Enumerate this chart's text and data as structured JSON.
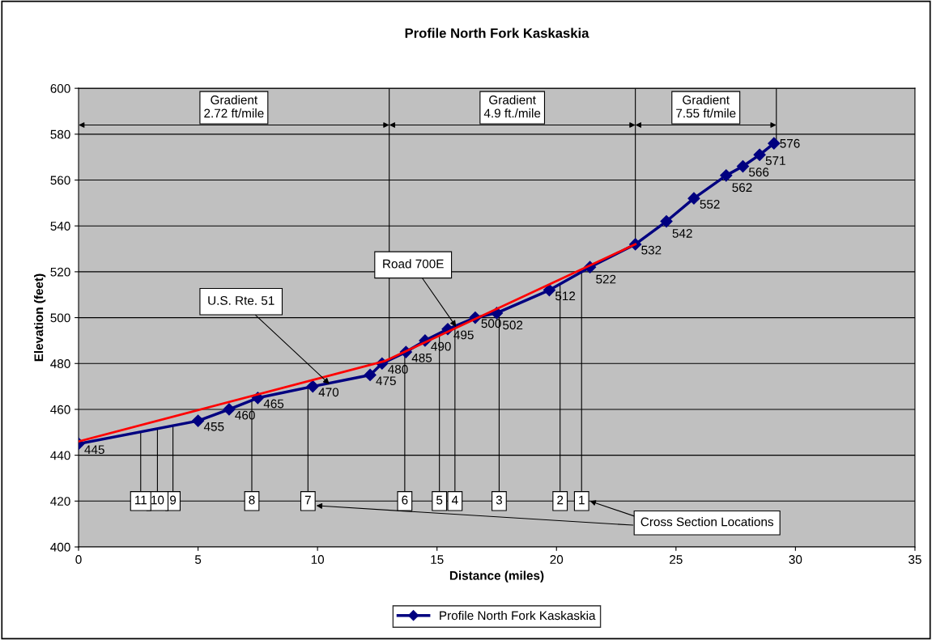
{
  "chart_data": {
    "type": "line",
    "title": "Profile North Fork Kaskaskia",
    "xlabel": "Distance (miles)",
    "ylabel": "Elevation (feet)",
    "series": [
      {
        "name": "Profile North Fork Kaskaskia",
        "color": "#000080",
        "marker": "diamond",
        "x": [
          0,
          5.0,
          6.3,
          7.5,
          9.8,
          12.2,
          12.7,
          13.7,
          14.5,
          15.45,
          16.6,
          17.5,
          19.7,
          21.4,
          23.3,
          24.6,
          25.75,
          27.1,
          27.8,
          28.5,
          29.1
        ],
        "values": [
          445,
          455,
          460,
          465,
          470,
          475,
          480,
          485,
          490,
          495,
          500,
          502,
          512,
          522,
          532,
          542,
          552,
          562,
          566,
          571,
          576
        ]
      },
      {
        "type": "line",
        "color": "#ff0000",
        "x": [
          0,
          12.8,
          23.3
        ],
        "values": [
          446,
          481,
          532
        ],
        "value_labels": [
          null,
          null,
          null
        ]
      }
    ],
    "data_labels": true,
    "xlim": [
      0,
      35
    ],
    "xticks": [
      0,
      5,
      10,
      15,
      20,
      25,
      30,
      35
    ],
    "ylim": [
      400,
      600
    ],
    "yticks": [
      400,
      420,
      440,
      460,
      480,
      500,
      520,
      540,
      560,
      580,
      600
    ],
    "grid": "y",
    "legend": "bottom",
    "ref_lines": [
      {
        "axis": "x",
        "value": 13.0
      },
      {
        "axis": "x",
        "value": 23.3
      },
      {
        "axis": "x",
        "value": 29.2
      }
    ],
    "annotations": [
      {
        "text": "U.S. Rte. 51",
        "x": 10.5,
        "y": 471
      },
      {
        "text": "Road 700E",
        "x": 15.8,
        "y": 496
      },
      "Cross Section Locations",
      {
        "text": "1",
        "x": 21.05,
        "y": 420
      },
      {
        "text": "2",
        "x": 20.15,
        "y": 420
      },
      {
        "text": "3",
        "x": 17.6,
        "y": 420
      },
      {
        "text": "4",
        "x": 15.75,
        "y": 420
      },
      {
        "text": "5",
        "x": 15.1,
        "y": 420
      },
      {
        "text": "6",
        "x": 13.65,
        "y": 420
      },
      {
        "text": "7",
        "x": 9.6,
        "y": 420
      },
      {
        "text": "8",
        "x": 7.25,
        "y": 420
      },
      {
        "text": "9",
        "x": 3.95,
        "y": 420
      },
      {
        "text": "10",
        "x": 3.3,
        "y": 420
      },
      {
        "text": "11",
        "x": 2.6,
        "y": 420
      },
      "Gradient\n2.72 ft/mile",
      "Gradient\n4.9 ft./mile",
      "Gradient\n7.55 ft/mile"
    ]
  }
}
